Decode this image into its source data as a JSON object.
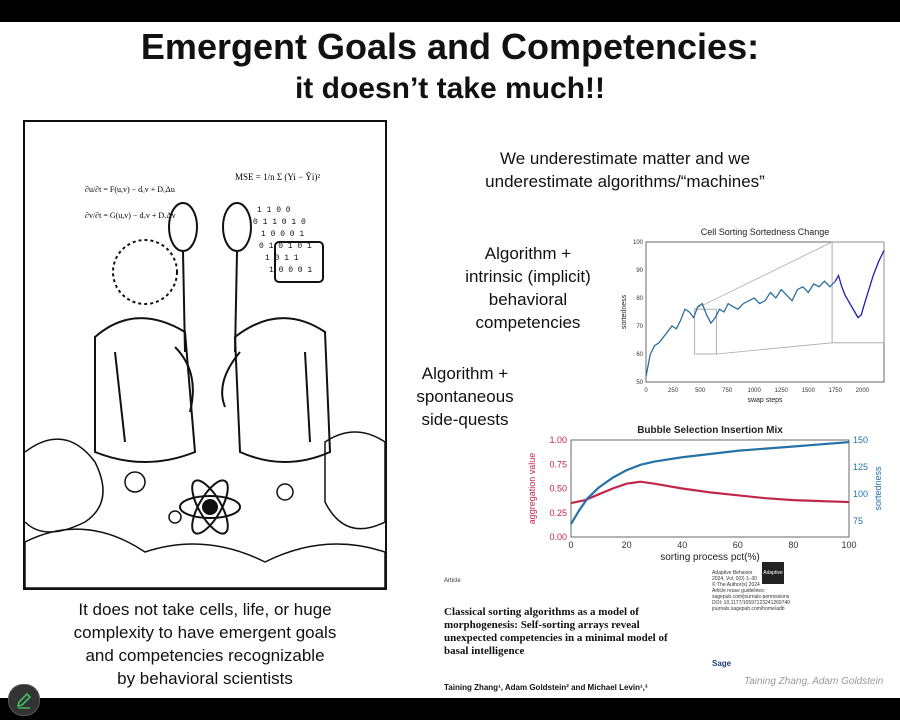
{
  "slide": {
    "title_line1": "Emergent Goals and Competencies:",
    "title_line2": "it doesn’t take much!!",
    "underestimate_line1": "We underestimate matter and we",
    "underestimate_line2": "underestimate algorithms/“machines”",
    "intrinsic_line1": "Algorithm +",
    "intrinsic_line2": "intrinsic (implicit)",
    "intrinsic_line3": "behavioral",
    "intrinsic_line4": "competencies",
    "sidequests_line1": "Algorithm +",
    "sidequests_line2": "spontaneous",
    "sidequests_line3": "side-quests",
    "caption_line1": "It does not take cells, life, or huge",
    "caption_line2": "complexity to have emergent goals",
    "caption_line3": "and competencies recognizable",
    "caption_line4": "by behavioral scientists",
    "credit": "Taining Zhang, Adam Goldstein"
  },
  "cartoon": {
    "formula_mse": "MSE = 1/n Σ (Yi − Ŷi)²",
    "formula_u": "∂u/∂t = F(u,v) − dᵤv + DᵤΔu",
    "formula_v": "∂v/∂t = G(u,v) − dᵥv + DᵥΔv"
  },
  "paper": {
    "label": "Article",
    "title": "Classical sorting algorithms as a model of morphogenesis: Self-sorting arrays reveal unexpected competencies in a minimal model of basal intelligence",
    "authors": "Taining Zhang¹, Adam Goldstein² and Michael Levin¹,³",
    "meta_line1": "Adaptive Behavior",
    "meta_line2": "2024, Vol. 0(0) 1–30",
    "meta_line3": "© The Author(s) 2024",
    "meta_line4": "Article reuse guidelines:",
    "meta_line5": "sagepub.com/journals-permissions",
    "meta_line6": "DOI: 10.1177/10597123241269740",
    "meta_line7": "journals.sagepub.com/home/adb",
    "logo": "Adaptive Behavior",
    "publisher": "Sage"
  },
  "chart_data": [
    {
      "type": "line",
      "title": "Cell Sorting Sortedness Change",
      "xlabel": "swap steps",
      "ylabel": "sortedness",
      "xlim": [
        0,
        2200
      ],
      "ylim": [
        50,
        100
      ],
      "xticks": [
        0,
        250,
        500,
        750,
        1000,
        1250,
        1500,
        1750,
        2000
      ],
      "yticks": [
        50,
        60,
        70,
        80,
        90,
        100
      ],
      "series": [
        {
          "color": "#2c6e9e",
          "x": [
            0,
            40,
            80,
            120,
            160,
            200,
            240,
            280,
            320,
            360,
            400,
            440,
            480,
            520,
            560,
            600,
            640,
            680,
            720,
            760,
            800,
            850,
            900,
            950,
            1000,
            1050,
            1100,
            1150,
            1200,
            1250,
            1300,
            1350,
            1400,
            1450,
            1500,
            1550,
            1600,
            1650,
            1700,
            1750
          ],
          "y": [
            52,
            60,
            63,
            64,
            66,
            68,
            70,
            69,
            72,
            76,
            75,
            73,
            77,
            78,
            74,
            71,
            73,
            76,
            75,
            78,
            77,
            76,
            78,
            79,
            80,
            78,
            79,
            82,
            80,
            83,
            81,
            79,
            83,
            84,
            82,
            85,
            84,
            86,
            84,
            86
          ]
        },
        {
          "color": "#1f1fb0",
          "x": [
            1750,
            1780,
            1810,
            1840,
            1870,
            1900,
            1930,
            1960,
            1990,
            2020,
            2060,
            2100,
            2150,
            2200
          ],
          "y": [
            86,
            88,
            84,
            81,
            79,
            77,
            75,
            73,
            74,
            78,
            83,
            88,
            93,
            97
          ]
        }
      ],
      "zoom_boxes": [
        {
          "x": [
            450,
            650
          ],
          "y": [
            60,
            76
          ]
        },
        {
          "x": [
            1720,
            2200
          ],
          "y": [
            64,
            100
          ]
        }
      ]
    },
    {
      "type": "line",
      "title": "Bubble Selection Insertion Mix",
      "xlabel": "sorting process pct(%)",
      "ylabel": "aggregation value",
      "ylabel_right": "sortedness",
      "xlim": [
        0,
        100
      ],
      "ylim": [
        0,
        1
      ],
      "ylim_right": [
        60,
        150
      ],
      "xticks": [
        0,
        20,
        40,
        60,
        80,
        100
      ],
      "yticks": [
        0.0,
        0.25,
        0.5,
        0.75,
        1.0
      ],
      "yticks_right": [
        75,
        100,
        125,
        150
      ],
      "series": [
        {
          "axis": "left",
          "color": "#c0284a",
          "x": [
            0,
            5,
            10,
            15,
            20,
            25,
            30,
            40,
            50,
            60,
            70,
            80,
            90,
            100
          ],
          "y": [
            0.35,
            0.38,
            0.44,
            0.5,
            0.55,
            0.57,
            0.55,
            0.5,
            0.46,
            0.43,
            0.4,
            0.38,
            0.37,
            0.36
          ]
        },
        {
          "axis": "right",
          "color": "#2472a8",
          "x": [
            0,
            3,
            6,
            10,
            15,
            20,
            25,
            30,
            40,
            50,
            60,
            70,
            80,
            90,
            100
          ],
          "y": [
            72,
            85,
            96,
            106,
            115,
            122,
            127,
            130,
            134,
            137,
            140,
            142,
            144,
            146,
            148
          ]
        }
      ]
    }
  ]
}
